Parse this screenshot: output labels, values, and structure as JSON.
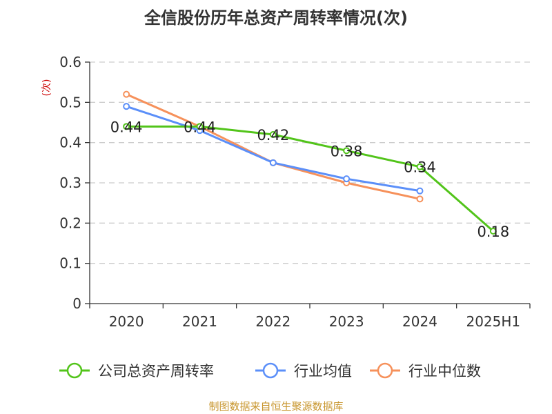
{
  "chart_data": {
    "type": "line",
    "title": "全信股份历年总资产周转率情况(次)",
    "ylabel": "(次)",
    "xlabel": "",
    "categories": [
      "2020",
      "2021",
      "2022",
      "2023",
      "2024",
      "2025H1"
    ],
    "ylim": [
      0,
      0.6
    ],
    "yticks": [
      "0",
      "0.1",
      "0.2",
      "0.3",
      "0.4",
      "0.5",
      "0.6"
    ],
    "grid": true,
    "legend_position": "bottom",
    "series": [
      {
        "name": "公司总资产周转率",
        "color": "#52c41a",
        "values": [
          0.44,
          0.44,
          0.42,
          0.38,
          0.34,
          0.18
        ],
        "labels": [
          "0.44",
          "0.44",
          "0.42",
          "0.38",
          "0.34",
          "0.18"
        ]
      },
      {
        "name": "行业均值",
        "color": "#5b8ff9",
        "values": [
          0.49,
          0.43,
          0.35,
          0.31,
          0.28,
          null
        ]
      },
      {
        "name": "行业中位数",
        "color": "#f6915b",
        "values": [
          0.52,
          0.44,
          0.35,
          0.3,
          0.26,
          null
        ]
      }
    ],
    "source": "制图数据来自恒生聚源数据库"
  }
}
